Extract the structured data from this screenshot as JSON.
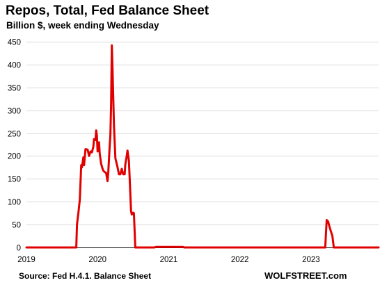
{
  "chart_data": {
    "type": "line",
    "title": "Repos, Total,  Fed Balance Sheet",
    "subtitle": "Billion $, week ending Wednesday",
    "source": "Source: Fed H.4.1. Balance Sheet",
    "brand": "WOLFSTREET.com",
    "xlabel": "",
    "ylabel": "",
    "grid": true,
    "line_color": "#e00000",
    "xlim": [
      2019.0,
      2023.95
    ],
    "ylim": [
      0,
      450
    ],
    "x_ticks": [
      2019,
      2020,
      2021,
      2022,
      2023
    ],
    "x_tick_labels": [
      "2019",
      "2020",
      "2021",
      "2022",
      "2023"
    ],
    "y_ticks": [
      0,
      50,
      100,
      150,
      200,
      250,
      300,
      350,
      400,
      450
    ],
    "y_tick_labels": [
      "0",
      "50",
      "100",
      "150",
      "200",
      "250",
      "300",
      "350",
      "400",
      "450"
    ],
    "series": [
      {
        "points": [
          [
            2019.0,
            0
          ],
          [
            2019.7,
            0
          ],
          [
            2019.71,
            50
          ],
          [
            2019.73,
            75
          ],
          [
            2019.75,
            105
          ],
          [
            2019.77,
            180
          ],
          [
            2019.78,
            175
          ],
          [
            2019.8,
            197
          ],
          [
            2019.81,
            180
          ],
          [
            2019.83,
            215
          ],
          [
            2019.86,
            214
          ],
          [
            2019.88,
            200
          ],
          [
            2019.9,
            210
          ],
          [
            2019.92,
            208
          ],
          [
            2019.94,
            220
          ],
          [
            2019.95,
            237
          ],
          [
            2019.97,
            235
          ],
          [
            2019.98,
            256
          ],
          [
            2019.99,
            245
          ],
          [
            2020.0,
            210
          ],
          [
            2020.02,
            230
          ],
          [
            2020.03,
            205
          ],
          [
            2020.05,
            183
          ],
          [
            2020.07,
            172
          ],
          [
            2020.08,
            168
          ],
          [
            2020.1,
            165
          ],
          [
            2020.12,
            163
          ],
          [
            2020.14,
            145
          ],
          [
            2020.15,
            165
          ],
          [
            2020.17,
            222
          ],
          [
            2020.18,
            245
          ],
          [
            2020.19,
            310
          ],
          [
            2020.2,
            442
          ],
          [
            2020.21,
            390
          ],
          [
            2020.22,
            330
          ],
          [
            2020.23,
            268
          ],
          [
            2020.25,
            195
          ],
          [
            2020.28,
            176
          ],
          [
            2020.3,
            160
          ],
          [
            2020.32,
            160
          ],
          [
            2020.34,
            172
          ],
          [
            2020.36,
            160
          ],
          [
            2020.38,
            160
          ],
          [
            2020.39,
            182
          ],
          [
            2020.41,
            200
          ],
          [
            2020.42,
            212
          ],
          [
            2020.44,
            190
          ],
          [
            2020.45,
            155
          ],
          [
            2020.47,
            80
          ],
          [
            2020.48,
            72
          ],
          [
            2020.5,
            76
          ],
          [
            2020.51,
            75
          ],
          [
            2020.53,
            0
          ],
          [
            2020.8,
            0
          ],
          [
            2020.82,
            1
          ],
          [
            2021.2,
            1
          ],
          [
            2021.22,
            0
          ],
          [
            2023.2,
            0
          ],
          [
            2023.22,
            60
          ],
          [
            2023.24,
            57
          ],
          [
            2023.26,
            45
          ],
          [
            2023.28,
            35
          ],
          [
            2023.3,
            25
          ],
          [
            2023.32,
            0
          ],
          [
            2023.95,
            0
          ]
        ]
      }
    ]
  }
}
